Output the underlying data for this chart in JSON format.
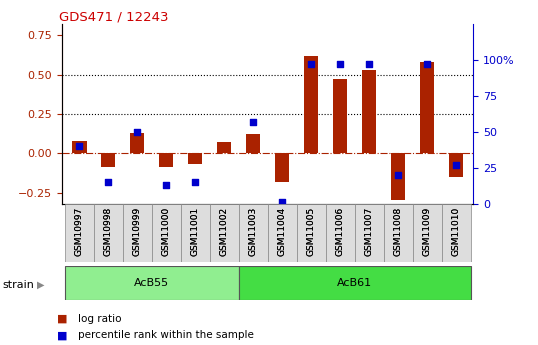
{
  "title": "GDS471 / 12243",
  "samples": [
    "GSM10997",
    "GSM10998",
    "GSM10999",
    "GSM11000",
    "GSM11001",
    "GSM11002",
    "GSM11003",
    "GSM11004",
    "GSM11005",
    "GSM11006",
    "GSM11007",
    "GSM11008",
    "GSM11009",
    "GSM11010"
  ],
  "log_ratio": [
    0.08,
    -0.09,
    0.13,
    -0.09,
    -0.07,
    0.07,
    0.12,
    -0.18,
    0.62,
    0.47,
    0.53,
    -0.3,
    0.58,
    -0.15
  ],
  "percentile_rank": [
    40,
    15,
    50,
    13,
    15,
    null,
    57,
    1,
    97,
    97,
    97,
    20,
    97,
    27
  ],
  "groups": [
    {
      "label": "AcB55",
      "start": 0,
      "end": 5,
      "color": "#90EE90"
    },
    {
      "label": "AcB61",
      "start": 6,
      "end": 13,
      "color": "#44DD44"
    }
  ],
  "bar_color": "#AA2200",
  "dot_color": "#0000CC",
  "ylim_left": [
    -0.32,
    0.82
  ],
  "ylim_right": [
    0,
    125
  ],
  "yticks_left": [
    -0.25,
    0.0,
    0.25,
    0.5,
    0.75
  ],
  "yticks_right": [
    0,
    25,
    50,
    75,
    100
  ],
  "hlines": [
    0.25,
    0.5
  ],
  "strain_label": "strain",
  "legend_items": [
    {
      "label": "log ratio",
      "color": "#AA2200"
    },
    {
      "label": "percentile rank within the sample",
      "color": "#0000CC"
    }
  ]
}
